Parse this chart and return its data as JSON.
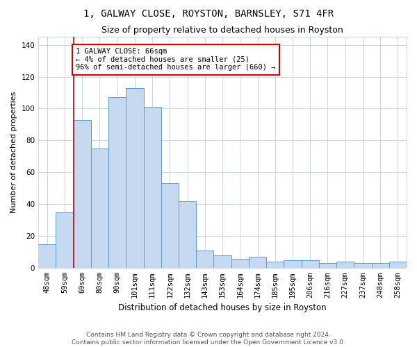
{
  "title1": "1, GALWAY CLOSE, ROYSTON, BARNSLEY, S71 4FR",
  "title2": "Size of property relative to detached houses in Royston",
  "xlabel": "Distribution of detached houses by size in Royston",
  "ylabel": "Number of detached properties",
  "categories": [
    "48sqm",
    "59sqm",
    "69sqm",
    "80sqm",
    "90sqm",
    "101sqm",
    "111sqm",
    "122sqm",
    "132sqm",
    "143sqm",
    "153sqm",
    "164sqm",
    "174sqm",
    "185sqm",
    "195sqm",
    "206sqm",
    "216sqm",
    "227sqm",
    "237sqm",
    "248sqm",
    "258sqm"
  ],
  "bar_values": [
    15,
    35,
    93,
    75,
    107,
    113,
    101,
    53,
    42,
    11,
    8,
    6,
    7,
    4,
    5,
    5,
    3,
    4,
    3,
    3,
    4
  ],
  "bar_color": "#c6d9f0",
  "bar_edge_color": "#5b9bd5",
  "grid_color": "#c8d4e8",
  "annotation_box_color": "#cc0000",
  "vline_color": "#cc0000",
  "vline_x_index": 1.5,
  "annotation_text": "1 GALWAY CLOSE: 66sqm\n← 4% of detached houses are smaller (25)\n96% of semi-detached houses are larger (660) →",
  "footer": "Contains HM Land Registry data © Crown copyright and database right 2024.\nContains public sector information licensed under the Open Government Licence v3.0.",
  "ylim": [
    0,
    145
  ],
  "yticks": [
    0,
    20,
    40,
    60,
    80,
    100,
    120,
    140
  ],
  "title1_fontsize": 10,
  "title2_fontsize": 9,
  "xlabel_fontsize": 8.5,
  "ylabel_fontsize": 8,
  "tick_fontsize": 7.5,
  "annotation_fontsize": 7.5,
  "footer_fontsize": 6.5
}
